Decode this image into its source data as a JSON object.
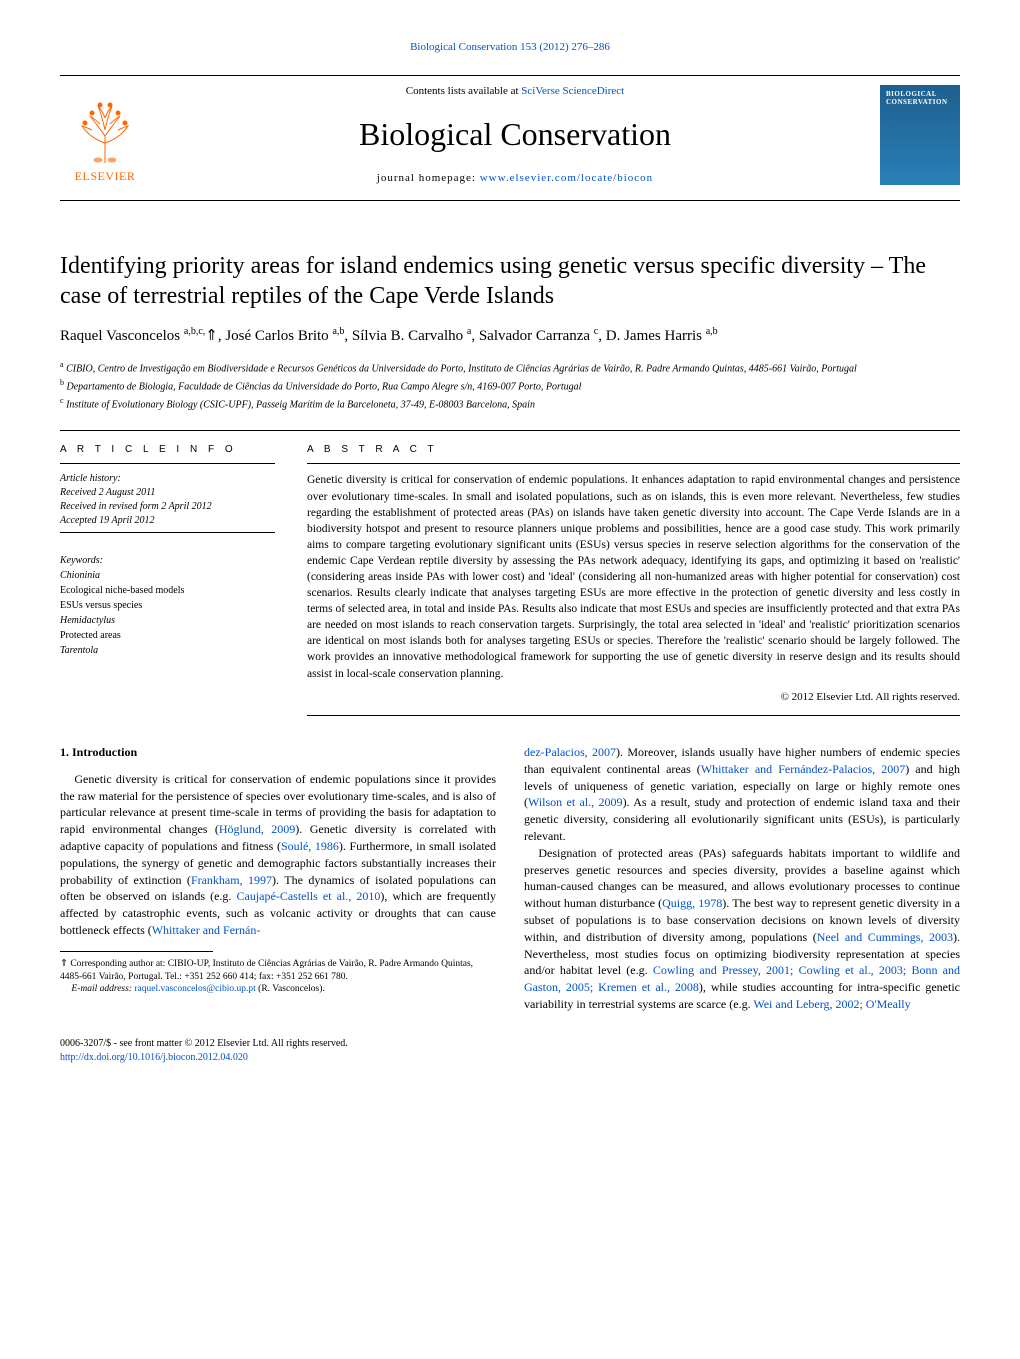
{
  "header": {
    "citation": "Biological Conservation 153 (2012) 276–286",
    "contents_prefix": "Contents lists available at ",
    "contents_link": "SciVerse ScienceDirect",
    "journal_name": "Biological Conservation",
    "homepage_prefix": "journal homepage: ",
    "homepage_link": "www.elsevier.com/locate/biocon",
    "publisher": "ELSEVIER",
    "cover_text": "BIOLOGICAL CONSERVATION"
  },
  "article": {
    "title": "Identifying priority areas for island endemics using genetic versus specific diversity – The case of terrestrial reptiles of the Cape Verde Islands",
    "authors_html": "Raquel Vasconcelos <sup>a,b,c,</sup><span class='star'>⇑</span>, José Carlos Brito <sup>a,b</sup>, Sílvia B. Carvalho <sup>a</sup>, Salvador Carranza <sup>c</sup>, D. James Harris <sup>a,b</sup>",
    "affiliations": {
      "a": "CIBIO, Centro de Investigação em Biodiversidade e Recursos Genéticos da Universidade do Porto, Instituto de Ciências Agrárias de Vairão, R. Padre Armando Quintas, 4485-661 Vairão, Portugal",
      "b": "Departamento de Biologia, Faculdade de Ciências da Universidade do Porto, Rua Campo Alegre s/n, 4169-007 Porto, Portugal",
      "c": "Institute of Evolutionary Biology (CSIC-UPF), Passeig Marítim de la Barceloneta, 37-49, E-08003 Barcelona, Spain"
    }
  },
  "info": {
    "heading": "A R T I C L E   I N F O",
    "history_label": "Article history:",
    "received": "Received 2 August 2011",
    "revised": "Received in revised form 2 April 2012",
    "accepted": "Accepted 19 April 2012",
    "keywords_label": "Keywords:",
    "keywords": [
      "Chioninia",
      "Ecological niche-based models",
      "ESUs versus species",
      "Hemidactylus",
      "Protected areas",
      "Tarentola"
    ]
  },
  "abstract": {
    "heading": "A B S T R A C T",
    "text": "Genetic diversity is critical for conservation of endemic populations. It enhances adaptation to rapid environmental changes and persistence over evolutionary time-scales. In small and isolated populations, such as on islands, this is even more relevant. Nevertheless, few studies regarding the establishment of protected areas (PAs) on islands have taken genetic diversity into account. The Cape Verde Islands are in a biodiversity hotspot and present to resource planners unique problems and possibilities, hence are a good case study. This work primarily aims to compare targeting evolutionary significant units (ESUs) versus species in reserve selection algorithms for the conservation of the endemic Cape Verdean reptile diversity by assessing the PAs network adequacy, identifying its gaps, and optimizing it based on 'realistic' (considering areas inside PAs with lower cost) and 'ideal' (considering all non-humanized areas with higher potential for conservation) cost scenarios. Results clearly indicate that analyses targeting ESUs are more effective in the protection of genetic diversity and less costly in terms of selected area, in total and inside PAs. Results also indicate that most ESUs and species are insufficiently protected and that extra PAs are needed on most islands to reach conservation targets. Surprisingly, the total area selected in 'ideal' and 'realistic' prioritization scenarios are identical on most islands both for analyses targeting ESUs or species. Therefore the 'realistic' scenario should be largely followed. The work provides an innovative methodological framework for supporting the use of genetic diversity in reserve design and its results should assist in local-scale conservation planning.",
    "copyright": "© 2012 Elsevier Ltd. All rights reserved."
  },
  "body": {
    "section_heading": "1. Introduction",
    "p1_a": "Genetic diversity is critical for conservation of endemic populations since it provides the raw material for the persistence of species over evolutionary time-scales, and is also of particular relevance at present time-scale in terms of providing the basis for adaptation to rapid environmental changes (",
    "p1_link1": "Höglund, 2009",
    "p1_b": "). Genetic diversity is correlated with adaptive capacity of populations and fitness (",
    "p1_link2": "Soulé, 1986",
    "p1_c": "). Furthermore, in small isolated populations, the synergy of genetic and demographic factors substantially increases their probability of extinction (",
    "p1_link3": "Frankham, 1997",
    "p1_d": "). The dynamics of isolated populations can often be observed on islands (e.g. ",
    "p1_link4": "Caujapé-Castells et al., 2010",
    "p1_e": "), which are frequently affected by catastrophic events, such as volcanic activity or droughts that can cause bottleneck effects (",
    "p1_link5": "Whittaker and Fernán-",
    "p2_link1": "dez-Palacios, 2007",
    "p2_a": "). Moreover, islands usually have higher numbers of endemic species than equivalent continental areas (",
    "p2_link2": "Whittaker and Fernández-Palacios, 2007",
    "p2_b": ") and high levels of uniqueness of genetic variation, especially on large or highly remote ones (",
    "p2_link3": "Wilson et al., 2009",
    "p2_c": "). As a result, study and protection of endemic island taxa and their genetic diversity, considering all evolutionarily significant units (ESUs), is particularly relevant.",
    "p3_a": "Designation of protected areas (PAs) safeguards habitats important to wildlife and preserves genetic resources and species diversity, provides a baseline against which human-caused changes can be measured, and allows evolutionary processes to continue without human disturbance (",
    "p3_link1": "Quigg, 1978",
    "p3_b": "). The best way to represent genetic diversity in a subset of populations is to base conservation decisions on known levels of diversity within, and distribution of diversity among, populations (",
    "p3_link2": "Neel and Cummings, 2003",
    "p3_c": "). Nevertheless, most studies focus on optimizing biodiversity representation at species and/or habitat level (e.g. ",
    "p3_link3": "Cowling and Pressey, 2001; Cowling et al., 2003; Bonn and Gaston, 2005; Kremen et al., 2008",
    "p3_d": "), while studies accounting for intra-specific genetic variability in terrestrial systems are scarce (e.g. ",
    "p3_link4": "Wei and Leberg, 2002; O'Meally"
  },
  "footnote": {
    "corresponding": "Corresponding author at: CIBIO-UP, Instituto de Ciências Agrárias de Vairão, R. Padre Armando Quintas, 4485-661 Vairão, Portugal. Tel.: +351 252 660 414; fax: +351 252 661 780.",
    "email_label": "E-mail address:",
    "email": "raquel.vasconcelos@cibio.up.pt",
    "email_suffix": "(R. Vasconcelos)."
  },
  "bottom": {
    "issn": "0006-3207/$ - see front matter © 2012 Elsevier Ltd. All rights reserved.",
    "doi": "http://dx.doi.org/10.1016/j.biocon.2012.04.020"
  },
  "colors": {
    "link": "#0052cc",
    "elsevier_orange": "#ff6600",
    "cover_bg1": "#1e5f8e",
    "cover_bg2": "#2a7fb8"
  }
}
